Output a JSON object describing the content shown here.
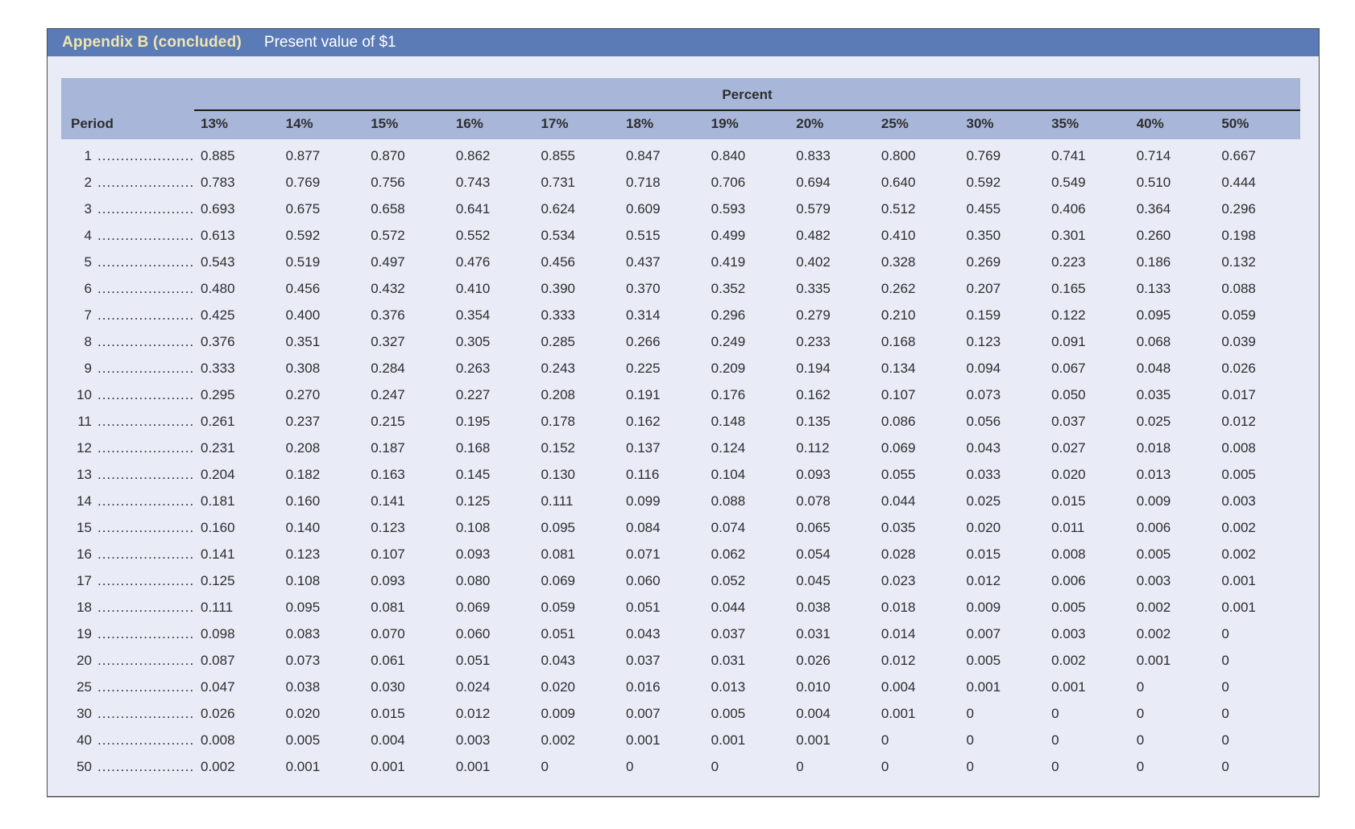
{
  "header": {
    "appendix_label": "Appendix B (concluded)",
    "title": "Present value of $1"
  },
  "table": {
    "group_header": "Percent",
    "period_label": "Period",
    "leader_dots": ".....................",
    "rate_headers": [
      "13%",
      "14%",
      "15%",
      "16%",
      "17%",
      "18%",
      "19%",
      "20%",
      "25%",
      "30%",
      "35%",
      "40%",
      "50%"
    ],
    "rows": [
      {
        "period": "1",
        "values": [
          "0.885",
          "0.877",
          "0.870",
          "0.862",
          "0.855",
          "0.847",
          "0.840",
          "0.833",
          "0.800",
          "0.769",
          "0.741",
          "0.714",
          "0.667"
        ]
      },
      {
        "period": "2",
        "values": [
          "0.783",
          "0.769",
          "0.756",
          "0.743",
          "0.731",
          "0.718",
          "0.706",
          "0.694",
          "0.640",
          "0.592",
          "0.549",
          "0.510",
          "0.444"
        ]
      },
      {
        "period": "3",
        "values": [
          "0.693",
          "0.675",
          "0.658",
          "0.641",
          "0.624",
          "0.609",
          "0.593",
          "0.579",
          "0.512",
          "0.455",
          "0.406",
          "0.364",
          "0.296"
        ]
      },
      {
        "period": "4",
        "values": [
          "0.613",
          "0.592",
          "0.572",
          "0.552",
          "0.534",
          "0.515",
          "0.499",
          "0.482",
          "0.410",
          "0.350",
          "0.301",
          "0.260",
          "0.198"
        ]
      },
      {
        "period": "5",
        "values": [
          "0.543",
          "0.519",
          "0.497",
          "0.476",
          "0.456",
          "0.437",
          "0.419",
          "0.402",
          "0.328",
          "0.269",
          "0.223",
          "0.186",
          "0.132"
        ]
      },
      {
        "period": "6",
        "values": [
          "0.480",
          "0.456",
          "0.432",
          "0.410",
          "0.390",
          "0.370",
          "0.352",
          "0.335",
          "0.262",
          "0.207",
          "0.165",
          "0.133",
          "0.088"
        ]
      },
      {
        "period": "7",
        "values": [
          "0.425",
          "0.400",
          "0.376",
          "0.354",
          "0.333",
          "0.314",
          "0.296",
          "0.279",
          "0.210",
          "0.159",
          "0.122",
          "0.095",
          "0.059"
        ]
      },
      {
        "period": "8",
        "values": [
          "0.376",
          "0.351",
          "0.327",
          "0.305",
          "0.285",
          "0.266",
          "0.249",
          "0.233",
          "0.168",
          "0.123",
          "0.091",
          "0.068",
          "0.039"
        ]
      },
      {
        "period": "9",
        "values": [
          "0.333",
          "0.308",
          "0.284",
          "0.263",
          "0.243",
          "0.225",
          "0.209",
          "0.194",
          "0.134",
          "0.094",
          "0.067",
          "0.048",
          "0.026"
        ]
      },
      {
        "period": "10",
        "values": [
          "0.295",
          "0.270",
          "0.247",
          "0.227",
          "0.208",
          "0.191",
          "0.176",
          "0.162",
          "0.107",
          "0.073",
          "0.050",
          "0.035",
          "0.017"
        ]
      },
      {
        "period": "11",
        "values": [
          "0.261",
          "0.237",
          "0.215",
          "0.195",
          "0.178",
          "0.162",
          "0.148",
          "0.135",
          "0.086",
          "0.056",
          "0.037",
          "0.025",
          "0.012"
        ]
      },
      {
        "period": "12",
        "values": [
          "0.231",
          "0.208",
          "0.187",
          "0.168",
          "0.152",
          "0.137",
          "0.124",
          "0.112",
          "0.069",
          "0.043",
          "0.027",
          "0.018",
          "0.008"
        ]
      },
      {
        "period": "13",
        "values": [
          "0.204",
          "0.182",
          "0.163",
          "0.145",
          "0.130",
          "0.116",
          "0.104",
          "0.093",
          "0.055",
          "0.033",
          "0.020",
          "0.013",
          "0.005"
        ]
      },
      {
        "period": "14",
        "values": [
          "0.181",
          "0.160",
          "0.141",
          "0.125",
          "0.111",
          "0.099",
          "0.088",
          "0.078",
          "0.044",
          "0.025",
          "0.015",
          "0.009",
          "0.003"
        ]
      },
      {
        "period": "15",
        "values": [
          "0.160",
          "0.140",
          "0.123",
          "0.108",
          "0.095",
          "0.084",
          "0.074",
          "0.065",
          "0.035",
          "0.020",
          "0.011",
          "0.006",
          "0.002"
        ]
      },
      {
        "period": "16",
        "values": [
          "0.141",
          "0.123",
          "0.107",
          "0.093",
          "0.081",
          "0.071",
          "0.062",
          "0.054",
          "0.028",
          "0.015",
          "0.008",
          "0.005",
          "0.002"
        ]
      },
      {
        "period": "17",
        "values": [
          "0.125",
          "0.108",
          "0.093",
          "0.080",
          "0.069",
          "0.060",
          "0.052",
          "0.045",
          "0.023",
          "0.012",
          "0.006",
          "0.003",
          "0.001"
        ]
      },
      {
        "period": "18",
        "values": [
          "0.111",
          "0.095",
          "0.081",
          "0.069",
          "0.059",
          "0.051",
          "0.044",
          "0.038",
          "0.018",
          "0.009",
          "0.005",
          "0.002",
          "0.001"
        ]
      },
      {
        "period": "19",
        "values": [
          "0.098",
          "0.083",
          "0.070",
          "0.060",
          "0.051",
          "0.043",
          "0.037",
          "0.031",
          "0.014",
          "0.007",
          "0.003",
          "0.002",
          "0"
        ]
      },
      {
        "period": "20",
        "values": [
          "0.087",
          "0.073",
          "0.061",
          "0.051",
          "0.043",
          "0.037",
          "0.031",
          "0.026",
          "0.012",
          "0.005",
          "0.002",
          "0.001",
          "0"
        ]
      },
      {
        "period": "25",
        "values": [
          "0.047",
          "0.038",
          "0.030",
          "0.024",
          "0.020",
          "0.016",
          "0.013",
          "0.010",
          "0.004",
          "0.001",
          "0.001",
          "0",
          "0"
        ]
      },
      {
        "period": "30",
        "values": [
          "0.026",
          "0.020",
          "0.015",
          "0.012",
          "0.009",
          "0.007",
          "0.005",
          "0.004",
          "0.001",
          "0",
          "0",
          "0",
          "0"
        ]
      },
      {
        "period": "40",
        "values": [
          "0.008",
          "0.005",
          "0.004",
          "0.003",
          "0.002",
          "0.001",
          "0.001",
          "0.001",
          "0",
          "0",
          "0",
          "0",
          "0"
        ]
      },
      {
        "period": "50",
        "values": [
          "0.002",
          "0.001",
          "0.001",
          "0.001",
          "0",
          "0",
          "0",
          "0",
          "0",
          "0",
          "0",
          "0",
          "0"
        ]
      }
    ]
  },
  "colors": {
    "title_bar_bg": "#5a7bb6",
    "appendix_label_color": "#f0e6ae",
    "title_text_color": "#ffffff",
    "header_band_bg": "#a8b7d9",
    "body_bg": "#e9ebf6",
    "text_color": "#2e2e2e",
    "rule_color": "#1a1a1a",
    "card_border": "#4d4d4d"
  }
}
